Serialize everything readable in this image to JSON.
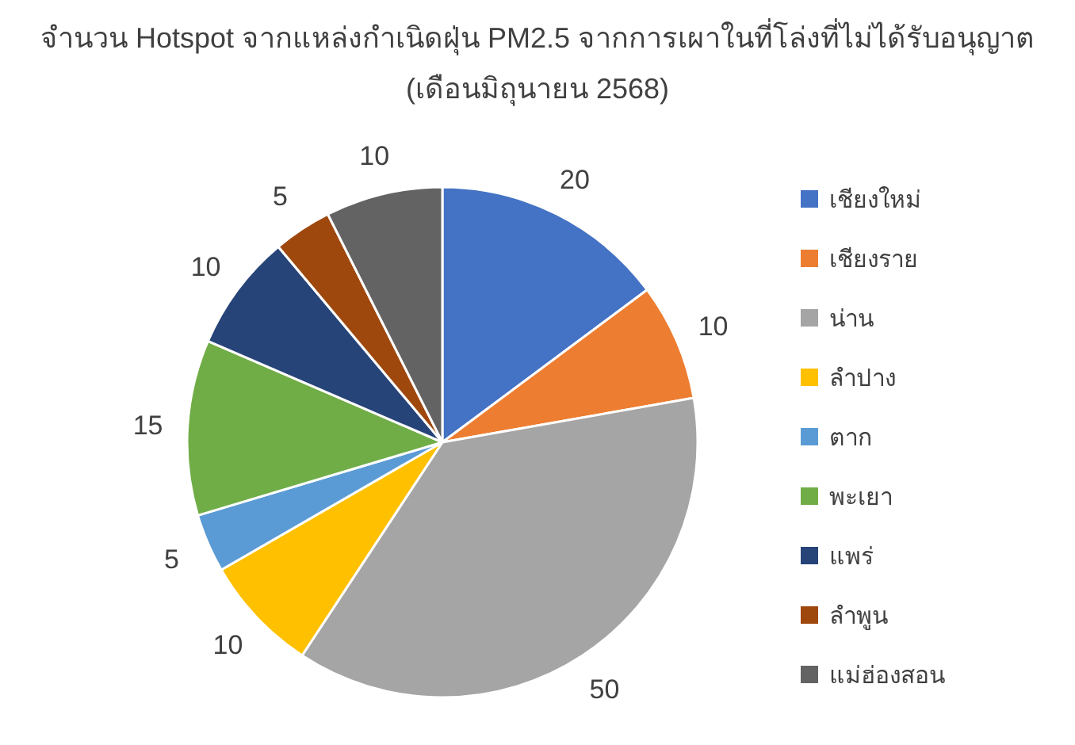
{
  "chart_data": {
    "type": "pie",
    "title": "จำนวน Hotspot จากแหล่งกำเนิดฝุ่น PM2.5 จากการเผาในที่โล่งที่ไม่ได้รับอนุญาต",
    "subtitle": "(เดือนมิถุนายน 2568)",
    "categories": [
      "เชียงใหม่",
      "เชียงราย",
      "น่าน",
      "ลำปาง",
      "ตาก",
      "พะเยา",
      "แพร่",
      "ลำพูน",
      "แม่ฮ่องสอน"
    ],
    "values": [
      20,
      10,
      50,
      10,
      5,
      15,
      10,
      5,
      10
    ],
    "colors": [
      "#4472c4",
      "#ed7d31",
      "#a5a5a5",
      "#ffc000",
      "#5b9bd5",
      "#70ad47",
      "#264478",
      "#9e480e",
      "#636363"
    ],
    "data_labels": true,
    "legend": "right"
  }
}
